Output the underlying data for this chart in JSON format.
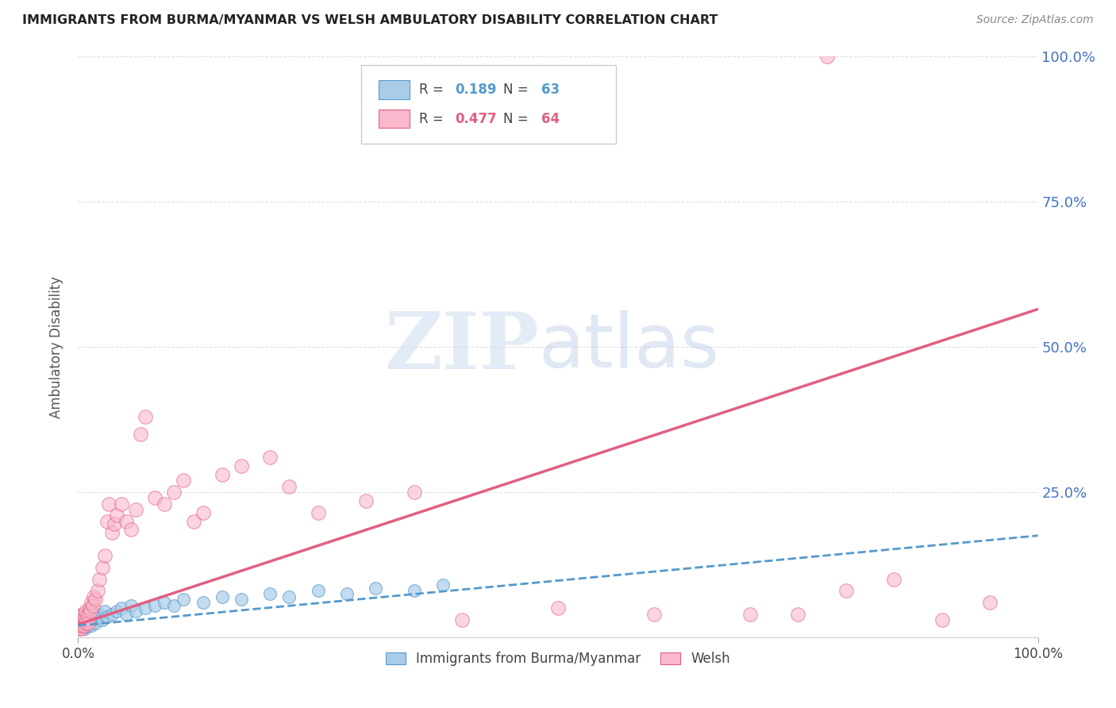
{
  "title": "IMMIGRANTS FROM BURMA/MYANMAR VS WELSH AMBULATORY DISABILITY CORRELATION CHART",
  "source": "Source: ZipAtlas.com",
  "ylabel": "Ambulatory Disability",
  "blue_color": "#aacce8",
  "pink_color": "#f9b8cc",
  "blue_edge_color": "#5599cc",
  "pink_edge_color": "#e06080",
  "blue_line_color": "#5599cc",
  "pink_line_color": "#e06080",
  "right_axis_color": "#4472C4",
  "grid_color": "#cccccc",
  "title_color": "#222222",
  "source_color": "#888888",
  "legend_r_blue": "0.189",
  "legend_n_blue": "63",
  "legend_r_pink": "0.477",
  "legend_n_pink": "64",
  "xlim": [
    0.0,
    1.0
  ],
  "ylim": [
    0.0,
    1.0
  ],
  "figsize": [
    14.06,
    8.92
  ],
  "dpi": 100,
  "blue_x": [
    0.0005,
    0.001,
    0.001,
    0.0012,
    0.0015,
    0.002,
    0.002,
    0.002,
    0.0025,
    0.003,
    0.003,
    0.003,
    0.0035,
    0.004,
    0.004,
    0.0045,
    0.005,
    0.005,
    0.005,
    0.006,
    0.006,
    0.006,
    0.007,
    0.007,
    0.008,
    0.008,
    0.009,
    0.009,
    0.01,
    0.01,
    0.011,
    0.012,
    0.013,
    0.014,
    0.015,
    0.016,
    0.018,
    0.02,
    0.022,
    0.025,
    0.028,
    0.03,
    0.035,
    0.04,
    0.045,
    0.05,
    0.055,
    0.06,
    0.07,
    0.08,
    0.09,
    0.1,
    0.11,
    0.13,
    0.15,
    0.17,
    0.2,
    0.22,
    0.25,
    0.28,
    0.31,
    0.35,
    0.38
  ],
  "blue_y": [
    0.015,
    0.02,
    0.025,
    0.018,
    0.022,
    0.015,
    0.03,
    0.02,
    0.025,
    0.018,
    0.035,
    0.022,
    0.028,
    0.02,
    0.04,
    0.025,
    0.018,
    0.03,
    0.022,
    0.035,
    0.025,
    0.015,
    0.03,
    0.02,
    0.035,
    0.025,
    0.028,
    0.018,
    0.04,
    0.025,
    0.03,
    0.035,
    0.025,
    0.02,
    0.03,
    0.04,
    0.025,
    0.035,
    0.04,
    0.03,
    0.045,
    0.035,
    0.04,
    0.045,
    0.05,
    0.04,
    0.055,
    0.045,
    0.05,
    0.055,
    0.06,
    0.055,
    0.065,
    0.06,
    0.07,
    0.065,
    0.075,
    0.07,
    0.08,
    0.075,
    0.085,
    0.08,
    0.09
  ],
  "pink_x": [
    0.0005,
    0.001,
    0.001,
    0.0015,
    0.002,
    0.002,
    0.003,
    0.003,
    0.004,
    0.004,
    0.005,
    0.005,
    0.006,
    0.006,
    0.007,
    0.008,
    0.008,
    0.009,
    0.01,
    0.01,
    0.012,
    0.013,
    0.014,
    0.015,
    0.016,
    0.018,
    0.02,
    0.022,
    0.025,
    0.028,
    0.03,
    0.032,
    0.035,
    0.038,
    0.04,
    0.045,
    0.05,
    0.055,
    0.06,
    0.065,
    0.07,
    0.08,
    0.09,
    0.1,
    0.11,
    0.12,
    0.13,
    0.15,
    0.17,
    0.2,
    0.22,
    0.25,
    0.3,
    0.35,
    0.4,
    0.5,
    0.6,
    0.7,
    0.75,
    0.8,
    0.85,
    0.9,
    0.95,
    0.78
  ],
  "pink_y": [
    0.015,
    0.02,
    0.03,
    0.025,
    0.02,
    0.035,
    0.025,
    0.015,
    0.03,
    0.02,
    0.025,
    0.04,
    0.03,
    0.02,
    0.035,
    0.025,
    0.045,
    0.03,
    0.04,
    0.025,
    0.05,
    0.045,
    0.06,
    0.055,
    0.07,
    0.065,
    0.08,
    0.1,
    0.12,
    0.14,
    0.2,
    0.23,
    0.18,
    0.195,
    0.21,
    0.23,
    0.2,
    0.185,
    0.22,
    0.35,
    0.38,
    0.24,
    0.23,
    0.25,
    0.27,
    0.2,
    0.215,
    0.28,
    0.295,
    0.31,
    0.26,
    0.215,
    0.235,
    0.25,
    0.03,
    0.05,
    0.04,
    0.04,
    0.04,
    0.08,
    0.1,
    0.03,
    0.06,
    1.0
  ],
  "pink_line_start_x": 0.0,
  "pink_line_start_y": 0.022,
  "pink_line_end_x": 1.0,
  "pink_line_end_y": 0.565,
  "blue_line_start_x": 0.0,
  "blue_line_start_y": 0.02,
  "blue_line_end_x": 1.0,
  "blue_line_end_y": 0.175
}
